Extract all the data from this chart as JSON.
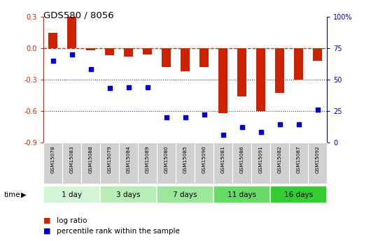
{
  "title": "GDS580 / 8056",
  "samples": [
    "GSM15078",
    "GSM15083",
    "GSM15088",
    "GSM15079",
    "GSM15084",
    "GSM15089",
    "GSM15080",
    "GSM15085",
    "GSM15090",
    "GSM15081",
    "GSM15086",
    "GSM15091",
    "GSM15082",
    "GSM15087",
    "GSM15092"
  ],
  "log_ratio": [
    0.15,
    0.3,
    -0.02,
    -0.07,
    -0.08,
    -0.06,
    -0.18,
    -0.22,
    -0.18,
    -0.62,
    -0.46,
    -0.6,
    -0.43,
    -0.3,
    -0.12
  ],
  "percentile_rank": [
    65,
    70,
    58,
    43,
    44,
    44,
    20,
    20,
    22,
    6,
    12,
    8,
    14,
    14,
    26
  ],
  "groups": [
    {
      "label": "1 day",
      "count": 3,
      "color": "#d4f5d4"
    },
    {
      "label": "3 days",
      "count": 3,
      "color": "#b8edb8"
    },
    {
      "label": "7 days",
      "count": 3,
      "color": "#9ce69c"
    },
    {
      "label": "11 days",
      "count": 3,
      "color": "#66d966"
    },
    {
      "label": "16 days",
      "count": 3,
      "color": "#33cc33"
    }
  ],
  "ylim": [
    -0.9,
    0.3
  ],
  "yticks_left": [
    -0.9,
    -0.6,
    -0.3,
    0.0,
    0.3
  ],
  "yticks_right": [
    0,
    25,
    50,
    75,
    100
  ],
  "bar_color": "#cc2200",
  "dot_color": "#0000cc",
  "hline_color": "#cc2200",
  "dotted_color": "#444444",
  "bg_color": "#ffffff",
  "sample_box_color": "#d0d0d0",
  "time_label": "time"
}
